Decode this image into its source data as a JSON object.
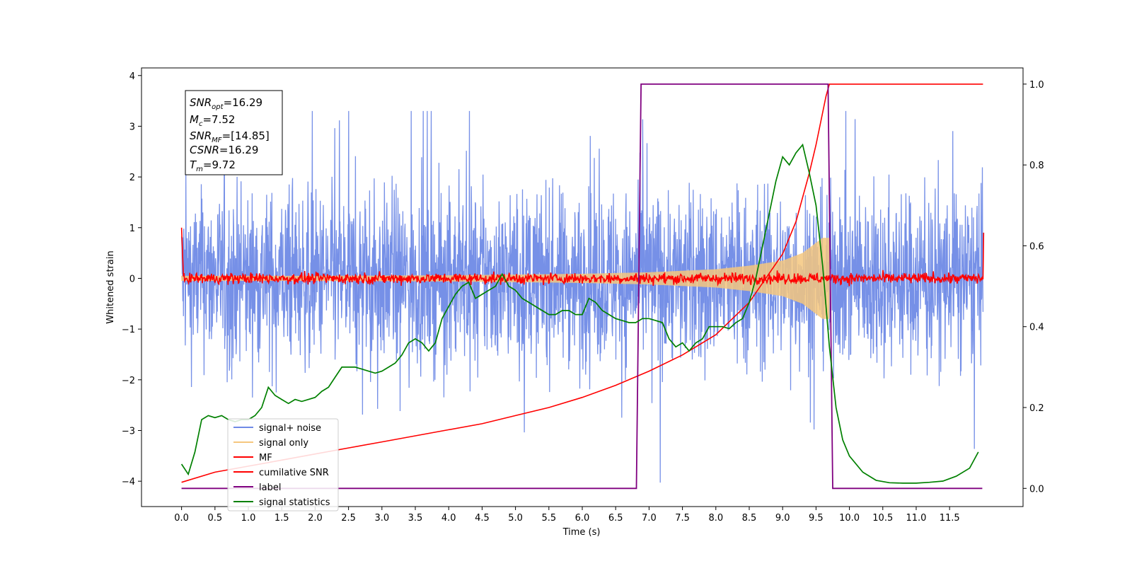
{
  "chart_data": {
    "type": "line",
    "xlabel": "Time (s)",
    "ylabel_left": "Whitened strain",
    "ylabel_right": "",
    "xlim": [
      -0.6,
      12.6
    ],
    "ylim_left": [
      -4.5,
      4.15
    ],
    "ylim_right": [
      -0.045,
      1.04
    ],
    "x_ticks": [
      0.0,
      0.5,
      1.0,
      1.5,
      2.0,
      2.5,
      3.0,
      3.5,
      4.0,
      4.5,
      5.0,
      5.5,
      6.0,
      6.5,
      7.0,
      7.5,
      8.0,
      8.5,
      9.0,
      9.5,
      10.0,
      10.5,
      11.0,
      11.5
    ],
    "x_tick_labels": [
      "0.0",
      "0.5",
      "1.0",
      "1.5",
      "2.0",
      "2.5",
      "3.0",
      "3.5",
      "4.0",
      "4.5",
      "5.0",
      "5.5",
      "6.0",
      "6.5",
      "7.0",
      "7.5",
      "8.0",
      "8.5",
      "9.0",
      "9.5",
      "10.0",
      "10.5",
      "11.0",
      "11.5"
    ],
    "y_ticks_left": [
      4,
      3,
      2,
      1,
      0,
      -1,
      -2,
      -3,
      -4
    ],
    "y_tick_labels_left": [
      "4",
      "3",
      "2",
      "1",
      "0",
      "−1",
      "−2",
      "−3",
      "−4"
    ],
    "y_ticks_right": [
      1.0,
      0.8,
      0.6,
      0.4,
      0.2,
      0.0
    ],
    "y_tick_labels_right": [
      "1.0",
      "0.8",
      "0.6",
      "0.4",
      "0.2",
      "0.0"
    ],
    "grid": false,
    "legend_position": "lower-left",
    "info_box": {
      "snr_opt": "=16.29",
      "mc": "=7.52",
      "snr_mf": "=[14.85]",
      "csnr": "=16.29",
      "tm": "=9.72"
    },
    "series": [
      {
        "name": "signal+ noise",
        "axis": "left",
        "color": "#6f8ae6",
        "description_values": "noise band approx. ±1.5 with spikes to about ±3.3 over 0.0–12.0 s",
        "x_range": [
          0.0,
          12.0
        ],
        "amplitude_typical": 1.5,
        "amplitude_peak": 3.3
      },
      {
        "name": "signal only",
        "axis": "left",
        "color": "#f5c77e",
        "x": [
          0.0,
          2.0,
          4.0,
          6.0,
          7.0,
          8.0,
          8.5,
          9.0,
          9.3,
          9.5,
          9.6,
          9.7
        ],
        "envelope": [
          0.05,
          0.05,
          0.06,
          0.09,
          0.12,
          0.18,
          0.25,
          0.35,
          0.5,
          0.7,
          0.8,
          0.8
        ]
      },
      {
        "name": "MF",
        "axis": "left",
        "color": "#ff0000",
        "x": [
          0.0,
          0.02,
          12.0,
          12.01
        ],
        "y": [
          1.0,
          0.0,
          0.0,
          0.9
        ],
        "noise_amplitude": 0.12
      },
      {
        "name": "cumilative SNR",
        "axis": "right",
        "color": "#ff0000",
        "x": [
          0.0,
          0.5,
          1.0,
          1.5,
          2.0,
          2.5,
          3.0,
          3.5,
          4.0,
          4.5,
          5.0,
          5.5,
          6.0,
          6.5,
          7.0,
          7.5,
          8.0,
          8.5,
          9.0,
          9.2,
          9.4,
          9.5,
          9.6,
          9.65,
          9.7,
          9.75,
          12.0
        ],
        "y": [
          0.015,
          0.04,
          0.055,
          0.07,
          0.085,
          0.1,
          0.115,
          0.13,
          0.145,
          0.16,
          0.18,
          0.2,
          0.225,
          0.255,
          0.29,
          0.33,
          0.38,
          0.46,
          0.58,
          0.66,
          0.78,
          0.85,
          0.93,
          0.97,
          1.0,
          1.0,
          1.0
        ]
      },
      {
        "name": "label",
        "axis": "right",
        "color": "#800080",
        "x": [
          0.0,
          6.81,
          6.88,
          9.68,
          9.75,
          11.99
        ],
        "y": [
          0.0,
          0.0,
          1.0,
          1.0,
          0.0,
          0.0
        ]
      },
      {
        "name": "signal statistics",
        "axis": "right",
        "color": "#008000",
        "x": [
          0.0,
          0.1,
          0.2,
          0.3,
          0.4,
          0.5,
          0.6,
          0.7,
          0.8,
          0.9,
          1.0,
          1.1,
          1.2,
          1.3,
          1.4,
          1.5,
          1.6,
          1.7,
          1.8,
          1.9,
          2.0,
          2.1,
          2.2,
          2.3,
          2.4,
          2.5,
          2.6,
          2.7,
          2.8,
          2.9,
          3.0,
          3.1,
          3.2,
          3.3,
          3.4,
          3.5,
          3.6,
          3.7,
          3.8,
          3.9,
          4.0,
          4.1,
          4.2,
          4.3,
          4.4,
          4.5,
          4.6,
          4.7,
          4.8,
          4.9,
          5.0,
          5.1,
          5.2,
          5.3,
          5.4,
          5.5,
          5.6,
          5.7,
          5.8,
          5.9,
          6.0,
          6.1,
          6.2,
          6.3,
          6.4,
          6.5,
          6.6,
          6.7,
          6.8,
          6.9,
          7.0,
          7.1,
          7.2,
          7.3,
          7.4,
          7.5,
          7.6,
          7.7,
          7.8,
          7.9,
          8.0,
          8.1,
          8.2,
          8.3,
          8.4,
          8.5,
          8.6,
          8.7,
          8.8,
          8.9,
          9.0,
          9.1,
          9.2,
          9.3,
          9.4,
          9.5,
          9.6,
          9.7,
          9.8,
          9.9,
          10.0,
          10.2,
          10.4,
          10.6,
          10.8,
          11.0,
          11.2,
          11.4,
          11.6,
          11.8,
          11.93
        ],
        "y": [
          0.06,
          0.035,
          0.09,
          0.17,
          0.18,
          0.175,
          0.18,
          0.17,
          0.165,
          0.17,
          0.17,
          0.18,
          0.2,
          0.25,
          0.23,
          0.22,
          0.21,
          0.22,
          0.215,
          0.22,
          0.225,
          0.24,
          0.25,
          0.275,
          0.3,
          0.3,
          0.3,
          0.295,
          0.29,
          0.285,
          0.29,
          0.3,
          0.31,
          0.33,
          0.36,
          0.37,
          0.36,
          0.34,
          0.36,
          0.42,
          0.45,
          0.48,
          0.5,
          0.51,
          0.47,
          0.48,
          0.49,
          0.5,
          0.53,
          0.5,
          0.49,
          0.47,
          0.46,
          0.45,
          0.44,
          0.43,
          0.43,
          0.44,
          0.44,
          0.43,
          0.43,
          0.47,
          0.46,
          0.44,
          0.43,
          0.42,
          0.415,
          0.41,
          0.41,
          0.42,
          0.42,
          0.415,
          0.41,
          0.37,
          0.35,
          0.36,
          0.34,
          0.36,
          0.37,
          0.4,
          0.4,
          0.4,
          0.395,
          0.41,
          0.42,
          0.46,
          0.52,
          0.6,
          0.68,
          0.76,
          0.82,
          0.8,
          0.83,
          0.85,
          0.78,
          0.7,
          0.55,
          0.35,
          0.2,
          0.12,
          0.08,
          0.04,
          0.02,
          0.014,
          0.013,
          0.013,
          0.015,
          0.018,
          0.03,
          0.05,
          0.09
        ]
      }
    ]
  }
}
